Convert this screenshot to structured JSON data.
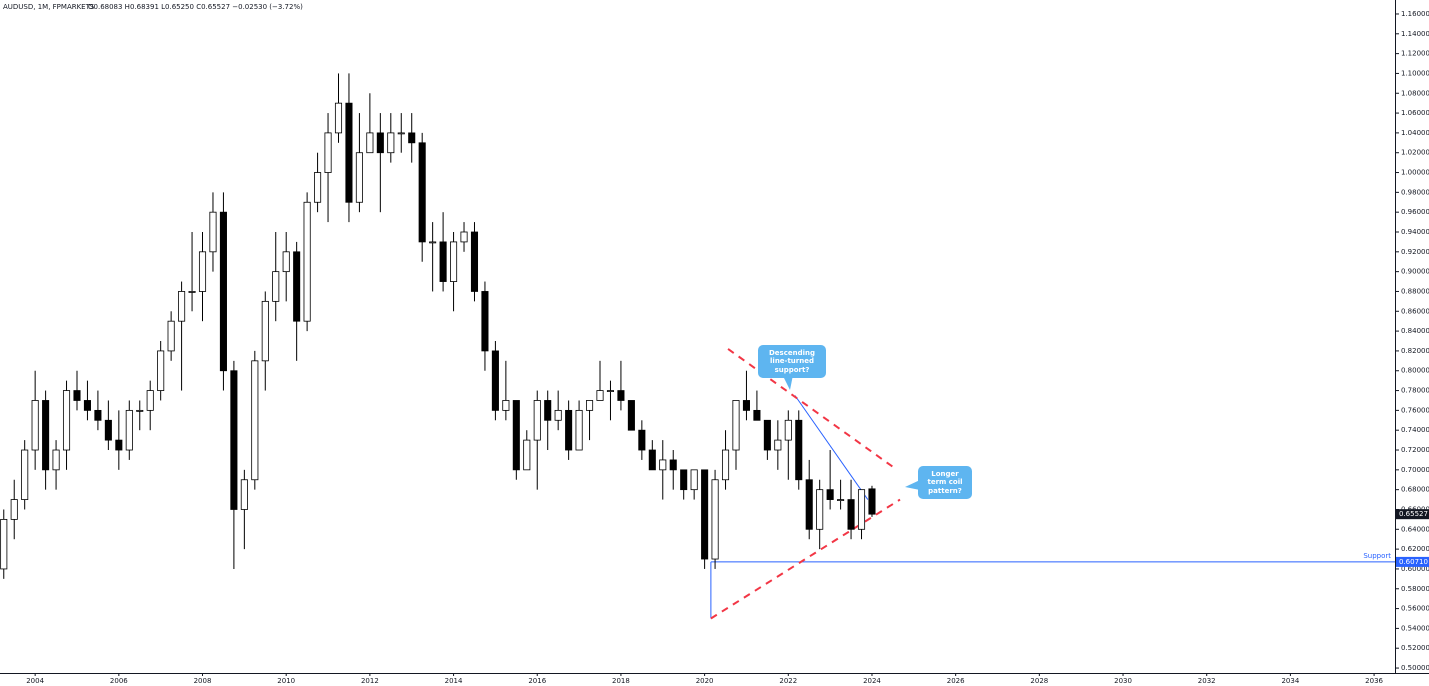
{
  "chart_data": {
    "type": "candlestick",
    "title": "AUDUSD, 1M, FPMARKETS",
    "subtitle": "O0.68083 H0.68391 L0.65250 C0.65527 −0.02530 (−3.72%)",
    "up_color": "#ffffff",
    "down_color": "#000000",
    "x": [
      2003.25,
      2003.5,
      2003.75,
      2004.0,
      2004.25,
      2004.5,
      2004.75,
      2005.0,
      2005.25,
      2005.5,
      2005.75,
      2006.0,
      2006.25,
      2006.5,
      2006.75,
      2007.0,
      2007.25,
      2007.5,
      2007.75,
      2008.0,
      2008.25,
      2008.5,
      2008.75,
      2009.0,
      2009.25,
      2009.5,
      2009.75,
      2010.0,
      2010.25,
      2010.5,
      2010.75,
      2011.0,
      2011.25,
      2011.5,
      2011.75,
      2012.0,
      2012.25,
      2012.5,
      2012.75,
      2013.0,
      2013.25,
      2013.5,
      2013.75,
      2014.0,
      2014.25,
      2014.5,
      2014.75,
      2015.0,
      2015.25,
      2015.5,
      2015.75,
      2016.0,
      2016.25,
      2016.5,
      2016.75,
      2017.0,
      2017.25,
      2017.5,
      2017.75,
      2018.0,
      2018.25,
      2018.5,
      2018.75,
      2019.0,
      2019.25,
      2019.5,
      2019.75,
      2020.0,
      2020.25,
      2020.5,
      2020.75,
      2021.0,
      2021.25,
      2021.5,
      2021.75,
      2022.0,
      2022.25,
      2022.5,
      2022.75,
      2023.0,
      2023.25,
      2023.5,
      2023.75,
      2024.0
    ],
    "open": [
      0.6,
      0.65,
      0.67,
      0.72,
      0.77,
      0.7,
      0.72,
      0.78,
      0.77,
      0.76,
      0.75,
      0.73,
      0.72,
      0.76,
      0.76,
      0.78,
      0.82,
      0.85,
      0.88,
      0.88,
      0.92,
      0.96,
      0.8,
      0.66,
      0.69,
      0.81,
      0.87,
      0.9,
      0.92,
      0.85,
      0.97,
      1.0,
      1.04,
      1.07,
      0.97,
      1.02,
      1.04,
      1.02,
      1.04,
      1.04,
      1.03,
      0.93,
      0.93,
      0.89,
      0.93,
      0.94,
      0.88,
      0.82,
      0.76,
      0.77,
      0.7,
      0.73,
      0.77,
      0.75,
      0.76,
      0.72,
      0.76,
      0.77,
      0.78,
      0.78,
      0.77,
      0.74,
      0.72,
      0.7,
      0.71,
      0.7,
      0.68,
      0.7,
      0.61,
      0.69,
      0.72,
      0.77,
      0.76,
      0.75,
      0.72,
      0.73,
      0.75,
      0.69,
      0.64,
      0.68,
      0.67,
      0.67,
      0.64,
      0.68083
    ],
    "high": [
      0.66,
      0.69,
      0.73,
      0.8,
      0.78,
      0.73,
      0.79,
      0.8,
      0.79,
      0.78,
      0.77,
      0.76,
      0.77,
      0.77,
      0.79,
      0.83,
      0.86,
      0.89,
      0.94,
      0.94,
      0.98,
      0.98,
      0.81,
      0.7,
      0.82,
      0.88,
      0.94,
      0.94,
      0.93,
      0.98,
      1.02,
      1.06,
      1.1,
      1.1,
      1.06,
      1.08,
      1.06,
      1.06,
      1.06,
      1.06,
      1.04,
      0.95,
      0.96,
      0.94,
      0.95,
      0.95,
      0.89,
      0.83,
      0.81,
      0.77,
      0.74,
      0.78,
      0.78,
      0.78,
      0.77,
      0.77,
      0.77,
      0.81,
      0.79,
      0.81,
      0.77,
      0.75,
      0.73,
      0.73,
      0.72,
      0.7,
      0.7,
      0.7,
      0.7,
      0.74,
      0.77,
      0.8,
      0.78,
      0.75,
      0.75,
      0.76,
      0.76,
      0.71,
      0.69,
      0.72,
      0.69,
      0.69,
      0.68,
      0.68391
    ],
    "low": [
      0.59,
      0.63,
      0.66,
      0.7,
      0.68,
      0.68,
      0.7,
      0.76,
      0.75,
      0.74,
      0.72,
      0.7,
      0.71,
      0.74,
      0.74,
      0.77,
      0.81,
      0.78,
      0.86,
      0.85,
      0.9,
      0.78,
      0.6,
      0.62,
      0.68,
      0.78,
      0.85,
      0.87,
      0.81,
      0.84,
      0.96,
      0.95,
      1.03,
      0.95,
      0.96,
      1.02,
      0.96,
      1.01,
      1.02,
      1.01,
      0.91,
      0.88,
      0.88,
      0.86,
      0.92,
      0.87,
      0.8,
      0.75,
      0.75,
      0.69,
      0.7,
      0.68,
      0.72,
      0.74,
      0.71,
      0.72,
      0.73,
      0.77,
      0.75,
      0.76,
      0.74,
      0.71,
      0.7,
      0.67,
      0.68,
      0.67,
      0.67,
      0.6,
      0.6,
      0.68,
      0.7,
      0.75,
      0.75,
      0.71,
      0.7,
      0.69,
      0.68,
      0.63,
      0.62,
      0.66,
      0.66,
      0.63,
      0.63,
      0.6525
    ],
    "close": [
      0.65,
      0.67,
      0.72,
      0.77,
      0.7,
      0.72,
      0.78,
      0.77,
      0.76,
      0.75,
      0.73,
      0.72,
      0.76,
      0.76,
      0.78,
      0.82,
      0.85,
      0.88,
      0.88,
      0.92,
      0.96,
      0.8,
      0.66,
      0.69,
      0.81,
      0.87,
      0.9,
      0.92,
      0.85,
      0.97,
      1.0,
      1.04,
      1.07,
      0.97,
      1.02,
      1.04,
      1.02,
      1.04,
      1.04,
      1.03,
      0.93,
      0.93,
      0.89,
      0.93,
      0.94,
      0.88,
      0.82,
      0.76,
      0.77,
      0.7,
      0.73,
      0.77,
      0.75,
      0.76,
      0.72,
      0.76,
      0.77,
      0.78,
      0.78,
      0.77,
      0.74,
      0.72,
      0.7,
      0.71,
      0.7,
      0.68,
      0.7,
      0.61,
      0.69,
      0.72,
      0.77,
      0.76,
      0.75,
      0.72,
      0.73,
      0.75,
      0.69,
      0.64,
      0.68,
      0.67,
      0.67,
      0.64,
      0.68,
      0.65527
    ],
    "xlim": [
      2003.16,
      2036.5
    ],
    "ylim": [
      0.495,
      1.1741
    ],
    "xticks": [
      2004,
      2006,
      2008,
      2010,
      2012,
      2014,
      2016,
      2018,
      2020,
      2022,
      2024,
      2026,
      2028,
      2030,
      2032,
      2034,
      2036
    ],
    "yticks": [
      {
        "value": 0.5,
        "label": "0.50000"
      },
      {
        "value": 0.52,
        "label": "0.52000"
      },
      {
        "value": 0.54,
        "label": "0.54000"
      },
      {
        "value": 0.56,
        "label": "0.56000"
      },
      {
        "value": 0.58,
        "label": "0.58000"
      },
      {
        "value": 0.6,
        "label": "0.60000"
      },
      {
        "value": 0.62,
        "label": "0.62000"
      },
      {
        "value": 0.64,
        "label": "0.64000"
      },
      {
        "value": 0.66,
        "label": "0.66000"
      },
      {
        "value": 0.68,
        "label": "0.68000"
      },
      {
        "value": 0.7,
        "label": "0.70000"
      },
      {
        "value": 0.72,
        "label": "0.72000"
      },
      {
        "value": 0.74,
        "label": "0.74000"
      },
      {
        "value": 0.76,
        "label": "0.76000"
      },
      {
        "value": 0.78,
        "label": "0.78000"
      },
      {
        "value": 0.8,
        "label": "0.80000"
      },
      {
        "value": 0.82,
        "label": "0.82000"
      },
      {
        "value": 0.84,
        "label": "0.84000"
      },
      {
        "value": 0.86,
        "label": "0.86000"
      },
      {
        "value": 0.88,
        "label": "0.88000"
      },
      {
        "value": 0.9,
        "label": "0.90000"
      },
      {
        "value": 0.92,
        "label": "0.92000"
      },
      {
        "value": 0.94,
        "label": "0.94000"
      },
      {
        "value": 0.96,
        "label": "0.96000"
      },
      {
        "value": 0.98,
        "label": "0.98000"
      },
      {
        "value": 1.0,
        "label": "1.00000"
      },
      {
        "value": 1.02,
        "label": "1.02000"
      },
      {
        "value": 1.04,
        "label": "1.04000"
      },
      {
        "value": 1.06,
        "label": "1.06000"
      },
      {
        "value": 1.08,
        "label": "1.08000"
      },
      {
        "value": 1.1,
        "label": "1.10000"
      },
      {
        "value": 1.12,
        "label": "1.12000"
      },
      {
        "value": 1.14,
        "label": "1.14000"
      },
      {
        "value": 1.16,
        "label": "1.16000"
      }
    ],
    "price_labels": [
      {
        "value": 0.65527,
        "label": "0.65527",
        "color": "#131722"
      },
      {
        "value": 0.6071,
        "label": "0.60710",
        "color": "#2962ff"
      }
    ],
    "lines": [
      {
        "x": [
          2020.15,
          2036.5
        ],
        "y": [
          0.6071,
          0.6071
        ],
        "color": "#2962ff",
        "dash": false,
        "label": "Support"
      },
      {
        "x": [
          2020.15,
          2020.15
        ],
        "y": [
          0.6071,
          0.55
        ],
        "color": "#2962ff",
        "dash": false
      },
      {
        "x": [
          2022.16,
          2023.9
        ],
        "y": [
          0.775,
          0.67
        ],
        "color": "#2962ff",
        "dash": false
      },
      {
        "x": [
          2020.56,
          2024.6
        ],
        "y": [
          0.822,
          0.7
        ],
        "color": "#f23645",
        "dash": true
      },
      {
        "x": [
          2020.15,
          2024.67
        ],
        "y": [
          0.55,
          0.67
        ],
        "color": "#f23645",
        "dash": true
      }
    ],
    "annotations": [
      "Descending line-turned support?",
      "Longer term coil pattern?"
    ]
  }
}
